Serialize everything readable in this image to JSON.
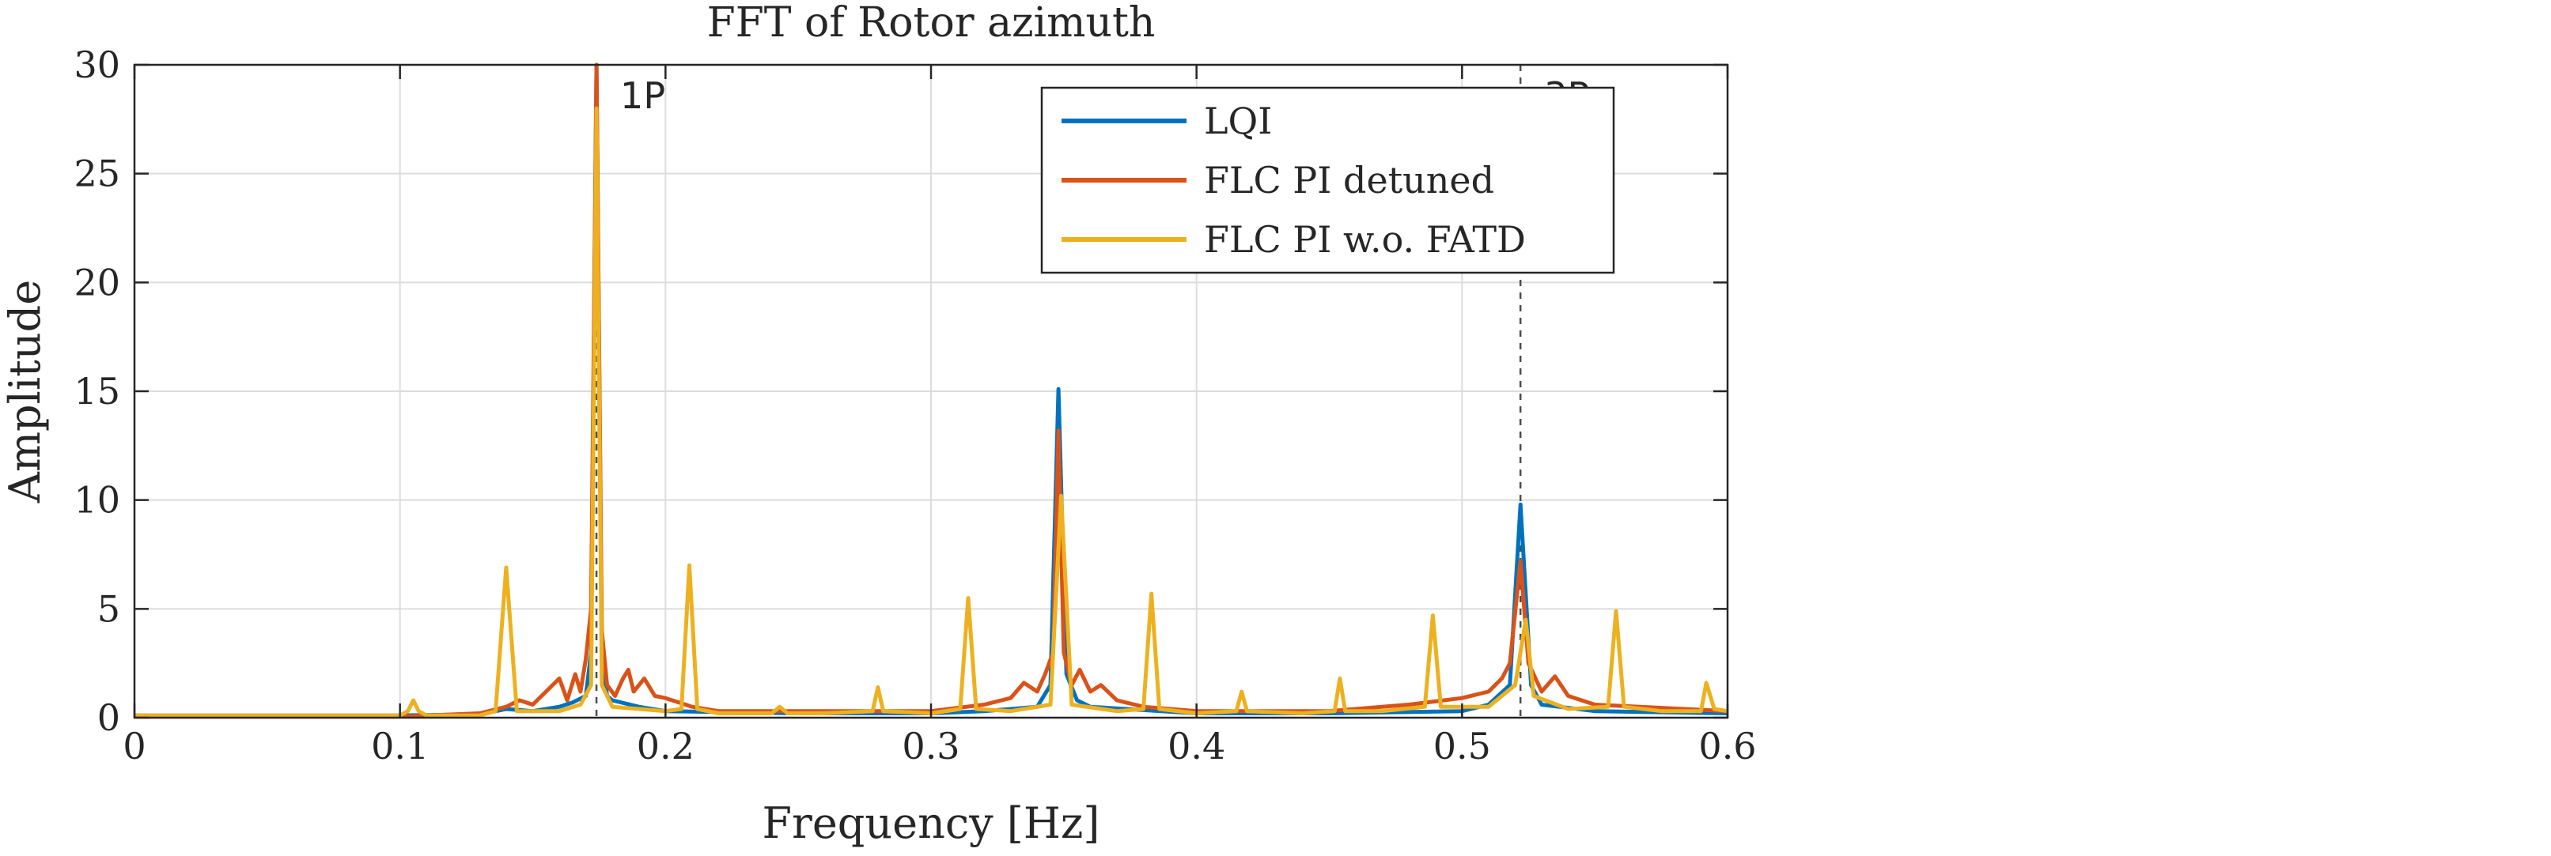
{
  "chart_data": {
    "type": "line",
    "title": "FFT of Rotor azimuth",
    "xlabel": "Frequency [Hz]",
    "ylabel": "Amplitude",
    "xlim": [
      0,
      0.6
    ],
    "ylim": [
      0,
      30
    ],
    "xticks": [
      0,
      0.1,
      0.2,
      0.3,
      0.4,
      0.5,
      0.6
    ],
    "xtick_labels": [
      "0",
      "0.1",
      "0.2",
      "0.3",
      "0.4",
      "0.5",
      "0.6"
    ],
    "yticks": [
      0,
      5,
      10,
      15,
      20,
      25,
      30
    ],
    "ytick_labels": [
      "0",
      "5",
      "10",
      "15",
      "20",
      "25",
      "30"
    ],
    "grid": true,
    "legend_position": "top-center",
    "annotations": [
      {
        "label": "1P",
        "x": 0.174
      },
      {
        "label": "3P",
        "x": 0.522
      }
    ],
    "series": [
      {
        "name": "LQI",
        "color": "#0072BD",
        "points": [
          [
            0,
            0.1
          ],
          [
            0.05,
            0.1
          ],
          [
            0.1,
            0.1
          ],
          [
            0.13,
            0.15
          ],
          [
            0.14,
            0.4
          ],
          [
            0.15,
            0.3
          ],
          [
            0.16,
            0.5
          ],
          [
            0.165,
            0.7
          ],
          [
            0.17,
            1.0
          ],
          [
            0.172,
            3.0
          ],
          [
            0.174,
            30
          ],
          [
            0.176,
            3.0
          ],
          [
            0.178,
            1.0
          ],
          [
            0.18,
            0.8
          ],
          [
            0.19,
            0.5
          ],
          [
            0.2,
            0.3
          ],
          [
            0.25,
            0.2
          ],
          [
            0.3,
            0.2
          ],
          [
            0.32,
            0.3
          ],
          [
            0.34,
            0.5
          ],
          [
            0.345,
            1.5
          ],
          [
            0.348,
            15.1
          ],
          [
            0.351,
            2.0
          ],
          [
            0.355,
            0.8
          ],
          [
            0.36,
            0.5
          ],
          [
            0.4,
            0.2
          ],
          [
            0.45,
            0.2
          ],
          [
            0.5,
            0.3
          ],
          [
            0.51,
            0.6
          ],
          [
            0.518,
            1.5
          ],
          [
            0.522,
            9.8
          ],
          [
            0.526,
            1.5
          ],
          [
            0.53,
            0.6
          ],
          [
            0.55,
            0.3
          ],
          [
            0.6,
            0.2
          ]
        ]
      },
      {
        "name": "FLC PI detuned",
        "color": "#D95319",
        "points": [
          [
            0,
            0.05
          ],
          [
            0.1,
            0.05
          ],
          [
            0.13,
            0.2
          ],
          [
            0.14,
            0.5
          ],
          [
            0.145,
            0.8
          ],
          [
            0.15,
            0.6
          ],
          [
            0.155,
            1.2
          ],
          [
            0.16,
            1.8
          ],
          [
            0.163,
            0.8
          ],
          [
            0.166,
            2.0
          ],
          [
            0.168,
            1.2
          ],
          [
            0.17,
            2.7
          ],
          [
            0.172,
            5.0
          ],
          [
            0.174,
            30
          ],
          [
            0.176,
            4.0
          ],
          [
            0.178,
            1.5
          ],
          [
            0.181,
            1.0
          ],
          [
            0.184,
            1.8
          ],
          [
            0.186,
            2.2
          ],
          [
            0.188,
            1.2
          ],
          [
            0.192,
            1.8
          ],
          [
            0.196,
            1.0
          ],
          [
            0.2,
            0.9
          ],
          [
            0.21,
            0.5
          ],
          [
            0.22,
            0.3
          ],
          [
            0.25,
            0.3
          ],
          [
            0.3,
            0.3
          ],
          [
            0.32,
            0.6
          ],
          [
            0.33,
            0.9
          ],
          [
            0.335,
            1.6
          ],
          [
            0.34,
            1.2
          ],
          [
            0.343,
            2.0
          ],
          [
            0.346,
            3.0
          ],
          [
            0.348,
            13.2
          ],
          [
            0.35,
            3.0
          ],
          [
            0.353,
            1.5
          ],
          [
            0.356,
            2.2
          ],
          [
            0.36,
            1.2
          ],
          [
            0.364,
            1.5
          ],
          [
            0.37,
            0.8
          ],
          [
            0.38,
            0.5
          ],
          [
            0.4,
            0.3
          ],
          [
            0.45,
            0.3
          ],
          [
            0.48,
            0.6
          ],
          [
            0.5,
            0.9
          ],
          [
            0.51,
            1.2
          ],
          [
            0.515,
            1.8
          ],
          [
            0.518,
            2.5
          ],
          [
            0.522,
            7.2
          ],
          [
            0.525,
            2.5
          ],
          [
            0.53,
            1.2
          ],
          [
            0.535,
            1.9
          ],
          [
            0.54,
            1.0
          ],
          [
            0.55,
            0.6
          ],
          [
            0.6,
            0.3
          ]
        ]
      },
      {
        "name": "FLC PI w.o. FATD",
        "color": "#EDB120",
        "points": [
          [
            0,
            0.1
          ],
          [
            0.1,
            0.1
          ],
          [
            0.103,
            0.3
          ],
          [
            0.105,
            0.8
          ],
          [
            0.107,
            0.3
          ],
          [
            0.11,
            0.1
          ],
          [
            0.13,
            0.1
          ],
          [
            0.136,
            0.3
          ],
          [
            0.14,
            6.9
          ],
          [
            0.144,
            0.3
          ],
          [
            0.16,
            0.3
          ],
          [
            0.168,
            0.6
          ],
          [
            0.172,
            1.5
          ],
          [
            0.174,
            28.0
          ],
          [
            0.176,
            1.5
          ],
          [
            0.18,
            0.5
          ],
          [
            0.2,
            0.3
          ],
          [
            0.206,
            0.4
          ],
          [
            0.209,
            7.0
          ],
          [
            0.212,
            0.4
          ],
          [
            0.22,
            0.2
          ],
          [
            0.24,
            0.2
          ],
          [
            0.243,
            0.5
          ],
          [
            0.246,
            0.2
          ],
          [
            0.26,
            0.2
          ],
          [
            0.278,
            0.3
          ],
          [
            0.28,
            1.4
          ],
          [
            0.282,
            0.3
          ],
          [
            0.3,
            0.2
          ],
          [
            0.311,
            0.4
          ],
          [
            0.314,
            5.5
          ],
          [
            0.317,
            0.4
          ],
          [
            0.33,
            0.3
          ],
          [
            0.345,
            0.6
          ],
          [
            0.349,
            10.2
          ],
          [
            0.353,
            0.6
          ],
          [
            0.37,
            0.3
          ],
          [
            0.38,
            0.4
          ],
          [
            0.383,
            5.7
          ],
          [
            0.386,
            0.4
          ],
          [
            0.4,
            0.2
          ],
          [
            0.415,
            0.3
          ],
          [
            0.417,
            1.2
          ],
          [
            0.419,
            0.3
          ],
          [
            0.44,
            0.2
          ],
          [
            0.452,
            0.3
          ],
          [
            0.454,
            1.8
          ],
          [
            0.456,
            0.3
          ],
          [
            0.47,
            0.3
          ],
          [
            0.486,
            0.5
          ],
          [
            0.489,
            4.7
          ],
          [
            0.492,
            0.5
          ],
          [
            0.51,
            0.5
          ],
          [
            0.52,
            1.5
          ],
          [
            0.524,
            4.5
          ],
          [
            0.527,
            1.0
          ],
          [
            0.54,
            0.4
          ],
          [
            0.555,
            0.5
          ],
          [
            0.558,
            4.9
          ],
          [
            0.561,
            0.5
          ],
          [
            0.575,
            0.3
          ],
          [
            0.59,
            0.3
          ],
          [
            0.592,
            1.6
          ],
          [
            0.595,
            0.4
          ],
          [
            0.6,
            0.3
          ]
        ]
      }
    ]
  }
}
